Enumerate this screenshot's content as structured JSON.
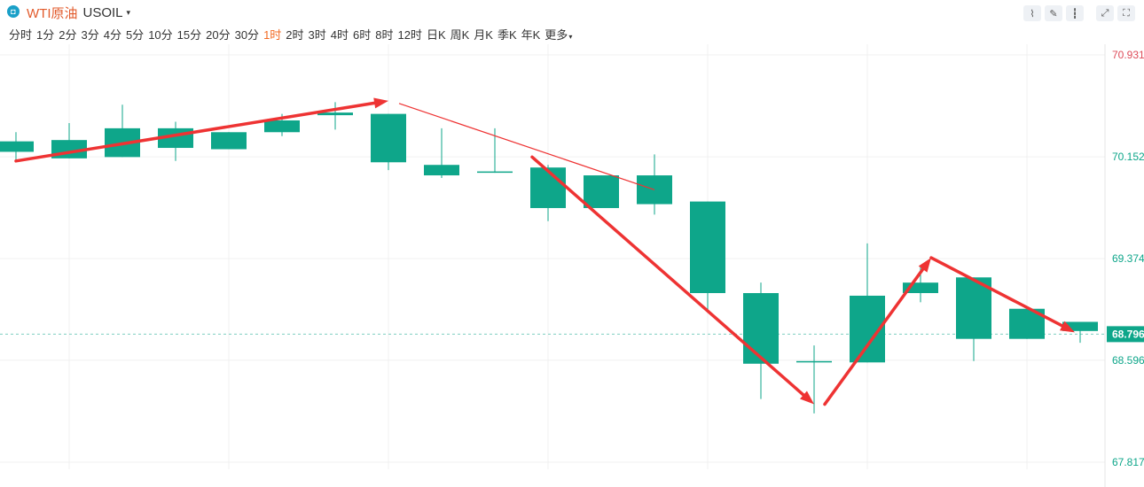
{
  "header": {
    "logo_glyph": "◘",
    "instrument_name": "WTI原油",
    "ticker": "USOIL",
    "caret": "▾"
  },
  "periods": [
    {
      "label": "分时"
    },
    {
      "label": "1分"
    },
    {
      "label": "2分"
    },
    {
      "label": "3分"
    },
    {
      "label": "4分"
    },
    {
      "label": "5分"
    },
    {
      "label": "10分"
    },
    {
      "label": "15分"
    },
    {
      "label": "20分"
    },
    {
      "label": "30分"
    },
    {
      "label": "1时",
      "active": true
    },
    {
      "label": "2时"
    },
    {
      "label": "3时"
    },
    {
      "label": "4时"
    },
    {
      "label": "6时"
    },
    {
      "label": "8时"
    },
    {
      "label": "12时"
    },
    {
      "label": "日K"
    },
    {
      "label": "周K"
    },
    {
      "label": "月K"
    },
    {
      "label": "季K"
    },
    {
      "label": "年K"
    },
    {
      "label": "更多"
    }
  ],
  "tools": [
    {
      "name": "line-chart-icon",
      "glyph": "⌇"
    },
    {
      "name": "draw-pen-icon",
      "glyph": "✎"
    },
    {
      "name": "candle-type-icon",
      "glyph": "┇"
    },
    {
      "name": "expand-icon",
      "glyph": "⤢"
    },
    {
      "name": "fullscreen-icon",
      "glyph": "⛶"
    }
  ],
  "colors": {
    "up": "#0ea68a",
    "down": "#de4c5a",
    "arrow": "#ee3333",
    "grid": "#f0f0f0",
    "axis_text": "#0ea68a",
    "axis_top_text": "#de4c5a",
    "current_price_bg": "#0ea68a"
  },
  "chart_data": {
    "type": "candlestick",
    "y_axis_ticks": [
      "70.931",
      "70.152",
      "69.374",
      "68.596",
      "67.817"
    ],
    "ylim": [
      67.817,
      70.931
    ],
    "current_price": "68.796",
    "candles": [
      {
        "open": 70.19,
        "close": 70.27,
        "high": 70.34,
        "low": 70.12
      },
      {
        "open": 70.14,
        "close": 70.28,
        "high": 70.41,
        "low": 70.14
      },
      {
        "open": 70.15,
        "close": 70.37,
        "high": 70.55,
        "low": 70.15
      },
      {
        "open": 70.22,
        "close": 70.37,
        "high": 70.42,
        "low": 70.12
      },
      {
        "open": 70.21,
        "close": 70.34,
        "high": 70.34,
        "low": 70.21
      },
      {
        "open": 70.34,
        "close": 70.43,
        "high": 70.48,
        "low": 70.31
      },
      {
        "open": 70.47,
        "close": 70.49,
        "high": 70.57,
        "low": 70.36
      },
      {
        "open": 70.11,
        "close": 70.48,
        "high": 70.48,
        "low": 70.05
      },
      {
        "open": 70.01,
        "close": 70.09,
        "high": 70.37,
        "low": 69.99
      },
      {
        "open": 70.03,
        "close": 70.04,
        "high": 70.37,
        "low": 70.03
      },
      {
        "open": 69.76,
        "close": 70.07,
        "high": 70.09,
        "low": 69.66
      },
      {
        "open": 69.76,
        "close": 70.01,
        "high": 70.01,
        "low": 69.76
      },
      {
        "open": 69.79,
        "close": 70.01,
        "high": 70.17,
        "low": 69.71
      },
      {
        "open": 69.11,
        "close": 69.81,
        "high": 69.81,
        "low": 68.96
      },
      {
        "open": 68.57,
        "close": 69.11,
        "high": 69.19,
        "low": 68.3
      },
      {
        "open": 68.59,
        "close": 68.59,
        "high": 68.71,
        "low": 68.19
      },
      {
        "open": 68.58,
        "close": 69.09,
        "high": 69.49,
        "low": 68.58
      },
      {
        "open": 69.11,
        "close": 69.19,
        "high": 69.31,
        "low": 69.04
      },
      {
        "open": 68.76,
        "close": 69.23,
        "high": 69.23,
        "low": 68.59
      },
      {
        "open": 68.76,
        "close": 68.99,
        "high": 68.99,
        "low": 68.76
      },
      {
        "open": 68.82,
        "close": 68.89,
        "high": 68.89,
        "low": 68.73
      }
    ],
    "annotations": [
      {
        "type": "arrow",
        "from": [
          0,
          70.12
        ],
        "to": [
          7,
          70.58
        ]
      },
      {
        "type": "line",
        "from": [
          7.2,
          70.56
        ],
        "to": [
          12,
          69.9
        ]
      },
      {
        "type": "arrow",
        "from": [
          9.7,
          70.15
        ],
        "to": [
          15,
          68.26
        ]
      },
      {
        "type": "arrow",
        "from": [
          15.2,
          68.26
        ],
        "to": [
          17.2,
          69.38
        ]
      },
      {
        "type": "arrow",
        "from": [
          17.2,
          69.38
        ],
        "to": [
          19.9,
          68.81
        ]
      }
    ]
  }
}
